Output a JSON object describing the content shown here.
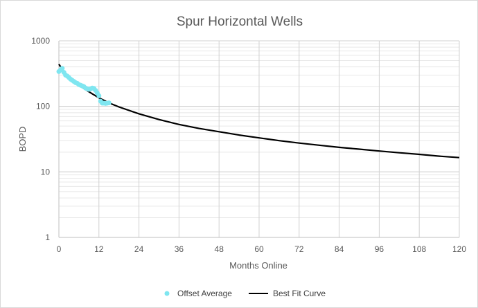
{
  "chart_data": {
    "type": "scatter",
    "title": "Spur Horizontal Wells",
    "xlabel": "Months Online",
    "ylabel": "BOPD",
    "xlim": [
      0,
      120
    ],
    "ylim": [
      1,
      1000
    ],
    "yscale": "log",
    "grid": true,
    "x_ticks": [
      "0",
      "12",
      "24",
      "36",
      "48",
      "60",
      "72",
      "84",
      "96",
      "108",
      "120"
    ],
    "y_ticks": [
      "1",
      "10",
      "100",
      "1000"
    ],
    "legend_position": "bottom",
    "series": [
      {
        "name": "Offset Average",
        "kind": "scatter",
        "color": "#7fe6f0",
        "x": [
          0,
          0.5,
          1,
          1.5,
          2,
          2.5,
          3,
          3.5,
          4,
          4.5,
          5,
          5.5,
          6,
          6.5,
          7,
          7.5,
          8,
          8.5,
          9,
          9.5,
          10,
          10.5,
          11,
          11.5,
          12,
          12.5,
          13,
          13.5,
          14,
          14.5,
          15
        ],
        "y": [
          340,
          360,
          380,
          330,
          300,
          290,
          275,
          260,
          250,
          240,
          230,
          225,
          215,
          210,
          205,
          200,
          190,
          185,
          182,
          185,
          190,
          188,
          175,
          160,
          145,
          120,
          112,
          112,
          111,
          112,
          113
        ]
      },
      {
        "name": "Best Fit Curve",
        "kind": "line",
        "color": "#000000",
        "x": [
          0,
          1,
          2,
          3,
          4,
          5,
          6,
          8,
          10,
          12,
          15,
          18,
          24,
          30,
          36,
          42,
          48,
          54,
          60,
          66,
          72,
          78,
          84,
          90,
          96,
          102,
          108,
          114,
          120
        ],
        "y": [
          440,
          370,
          320,
          285,
          255,
          230,
          210,
          180,
          155,
          135,
          113,
          98,
          77,
          63,
          53,
          46,
          41,
          36.5,
          33,
          30,
          27.5,
          25.5,
          23.7,
          22.2,
          20.8,
          19.6,
          18.5,
          17.4,
          16.5
        ]
      }
    ]
  }
}
